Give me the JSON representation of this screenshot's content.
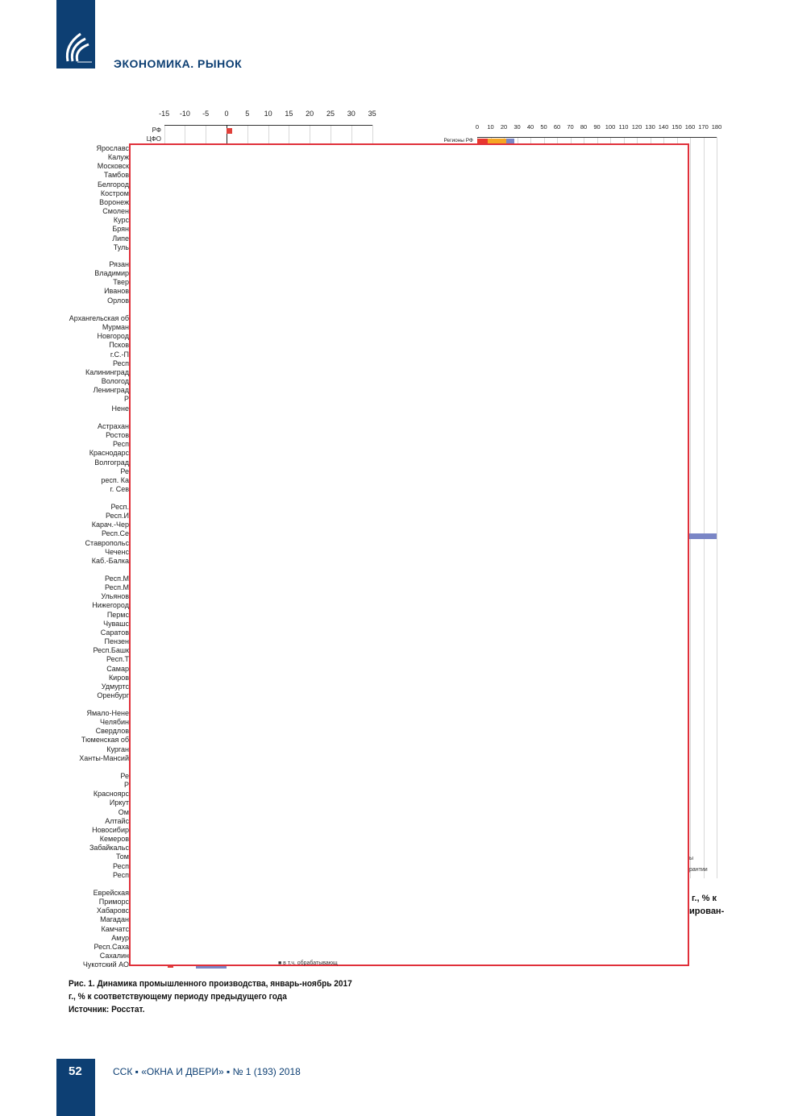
{
  "header": {
    "section_title": "ЭКОНОМИКА. РЫНОК",
    "logo": "journal-logo"
  },
  "left_chart": {
    "x_ticks": [
      "-15",
      "-10",
      "-5",
      "0",
      "5",
      "10",
      "15",
      "20",
      "25",
      "30",
      "35"
    ],
    "top_labels": [
      "РФ",
      "ЦФО"
    ],
    "rf_value": 1.3,
    "bar_color": "#e0403a",
    "region_groups": [
      [
        "Ярославс",
        "Калуж",
        "Московск",
        "Тамбов",
        "Белгород",
        "Костром",
        "Воронеж",
        "Смолен",
        "Курс",
        "Брян",
        "Липе",
        "Туль"
      ],
      [
        "Рязан",
        "Владимир",
        "Твер",
        "Иванов",
        "Орлов"
      ],
      [
        "Архангельская об",
        "Мурман",
        "Новгород",
        "Псков",
        "г.С.-П",
        "Респ",
        "Калининград",
        "Вологод",
        "Ленинград",
        "Р",
        "Нене"
      ],
      [
        "Астрахан",
        "Ростов",
        "Респ",
        "Краснодарс",
        "Волгоград",
        "Ре",
        "респ. Ка",
        "г. Сев"
      ],
      [
        "Респ.",
        "Респ.И",
        "Карач.-Чер",
        "Респ.Се",
        "Ставропольс",
        "Чеченс",
        "Каб.-Балка"
      ],
      [
        "Респ.М",
        "Респ.М",
        "Ульянов",
        "Нижегород",
        "Пермс",
        "Чувашс",
        "Саратов",
        "Пензен",
        "Респ.Башк",
        "Респ.Т",
        "Самар",
        "Киров",
        "Удмуртс",
        "Оренбург"
      ],
      [
        "Ямало-Нене",
        "Челябин",
        "Свердлов",
        "Тюменская об",
        "Курган",
        "Ханты-Мансий"
      ],
      [
        "Ре",
        "Р",
        "Красноярс",
        "Иркут",
        "Ом",
        "Алтайс",
        "Новосибир",
        "Кемеров",
        "Забайкальс",
        "Том",
        "Респ",
        "Респ"
      ],
      [
        "Еврейская",
        "Приморс",
        "Хабаровс",
        "Магадан",
        "Камчатс",
        "Амур",
        "Респ.Саха",
        "Сахалин",
        "Чукотский АО"
      ]
    ],
    "legend_fragment": "■ в т.ч. обрабатывающ"
  },
  "right_chart": {
    "x_ticks": [
      "0",
      "10",
      "20",
      "30",
      "40",
      "50",
      "60",
      "70",
      "80",
      "90",
      "100",
      "110",
      "120",
      "130",
      "140",
      "150",
      "160",
      "170",
      "180"
    ],
    "row_label": "Регионы РФ",
    "stacked_values": [
      8,
      14,
      6
    ],
    "colors": [
      "#e8372e",
      "#f5a623",
      "#7a86c6"
    ],
    "legend_fragments": [
      "ы",
      "рантии"
    ],
    "text_fragments": [
      "г., % к",
      "ирован-"
    ]
  },
  "caption": {
    "line1": "Рис. 1. Динамика промышленного производства, январь-ноябрь 2017 г., % к соответствующему периоду предыдущего года",
    "source": "Источник: Росстат."
  },
  "footer": {
    "page_number": "52",
    "publication": "ССК ▪ «ОКНА И ДВЕРИ» ▪ № 1 (193) 2018"
  }
}
